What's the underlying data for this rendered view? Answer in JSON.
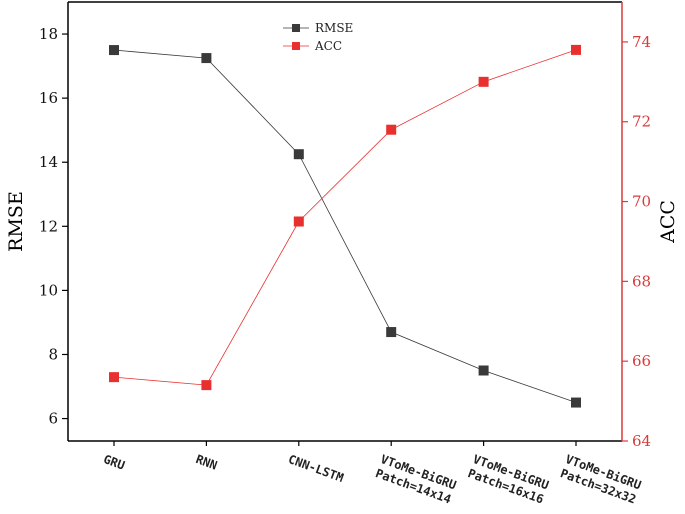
{
  "chart_data": {
    "type": "line",
    "categories": [
      [
        "GRU"
      ],
      [
        "RNN"
      ],
      [
        "CNN-LSTM"
      ],
      [
        "VToMe-BiGRU",
        "Patch=14x14"
      ],
      [
        "VToMe-BiGRU",
        "Patch=16x16"
      ],
      [
        "VToMe-BiGRU",
        "Patch=32x32"
      ]
    ],
    "series": [
      {
        "name": "RMSE",
        "axis": "left",
        "color": "#3a3a3a",
        "values": [
          17.5,
          17.25,
          14.25,
          8.7,
          7.5,
          6.5
        ]
      },
      {
        "name": "ACC",
        "axis": "right",
        "color": "#e8302f",
        "values": [
          65.6,
          65.4,
          69.5,
          71.8,
          73.0,
          73.8
        ]
      }
    ],
    "ylabel": "RMSE",
    "y2label": "ACC",
    "ylim": [
      5.3,
      19
    ],
    "y2lim": [
      64,
      75
    ],
    "yticks": [
      "6",
      "8",
      "10",
      "12",
      "14",
      "16",
      "18"
    ],
    "y2ticks": [
      "64",
      "66",
      "68",
      "70",
      "72",
      "74"
    ],
    "left_axis_color": "#000000",
    "right_axis_color": "#d93a3a",
    "legend_position": "top-center",
    "grid": false
  }
}
